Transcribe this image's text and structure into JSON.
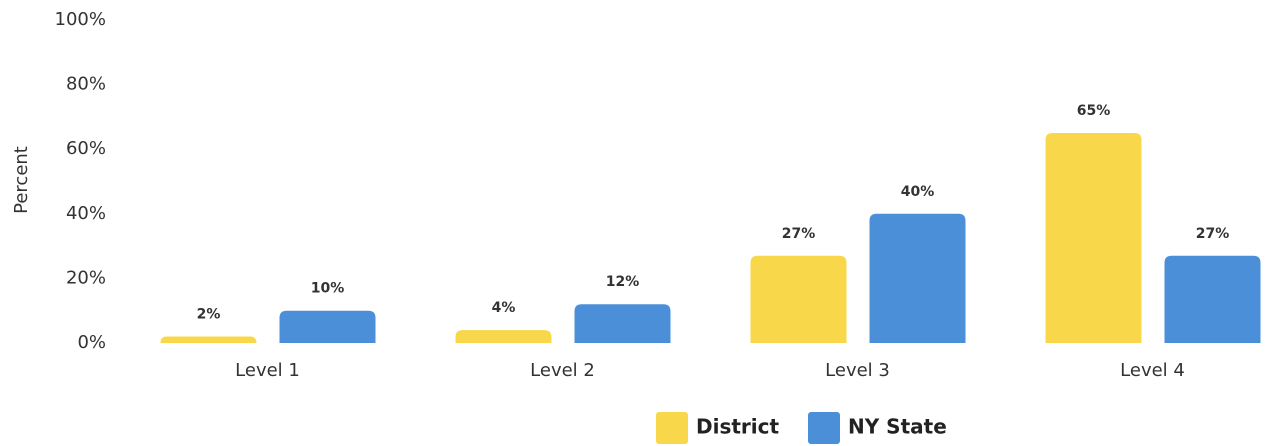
{
  "chart_data": {
    "type": "bar",
    "ylabel": "Percent",
    "categories": [
      "Level 1",
      "Level 2",
      "Level 3",
      "Level 4"
    ],
    "series": [
      {
        "name": "District",
        "color": "#f8d84a",
        "values": [
          2,
          4,
          27,
          65
        ],
        "value_labels": [
          "2%",
          "4%",
          "27%",
          "65%"
        ]
      },
      {
        "name": "NY State",
        "color": "#4a8fd8",
        "values": [
          10,
          12,
          40,
          27
        ],
        "value_labels": [
          "10%",
          "12%",
          "40%",
          "27%"
        ]
      }
    ],
    "ylim": [
      0,
      100
    ],
    "yticks": [
      {
        "value": 0,
        "label": "0%"
      },
      {
        "value": 20,
        "label": "20%"
      },
      {
        "value": 40,
        "label": "40%"
      },
      {
        "value": 60,
        "label": "60%"
      },
      {
        "value": 80,
        "label": "80%"
      },
      {
        "value": 100,
        "label": "100%"
      }
    ],
    "grid": false,
    "legend": "bottom"
  }
}
